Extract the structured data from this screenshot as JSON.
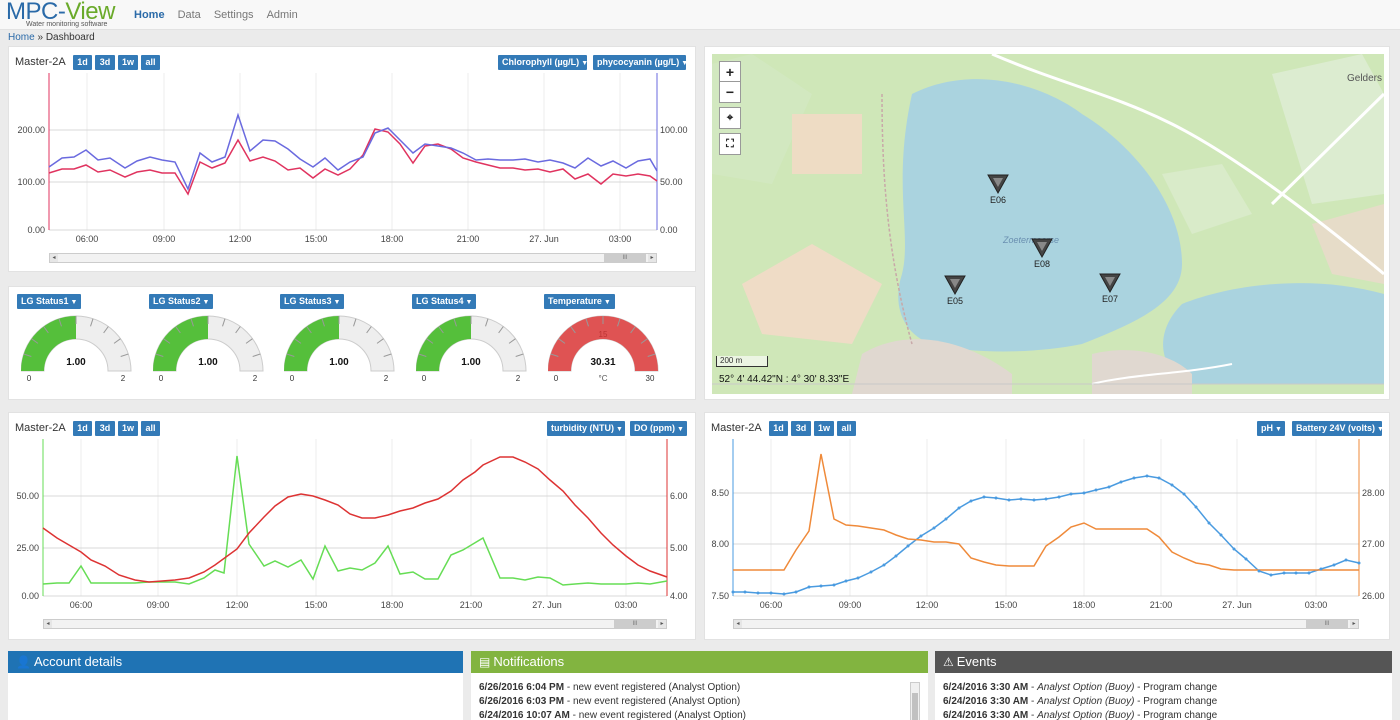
{
  "app": {
    "logo_main_a": "MPC-",
    "logo_main_b": "View",
    "logo_sub": "Water monitoring software"
  },
  "nav": [
    "Home",
    "Data",
    "Settings",
    "Admin"
  ],
  "breadcrumb": {
    "home": "Home",
    "sep": "»",
    "current": "Dashboard"
  },
  "range_buttons": [
    "1d",
    "3d",
    "1w",
    "all"
  ],
  "time_ticks": [
    "06:00",
    "09:00",
    "12:00",
    "15:00",
    "18:00",
    "21:00",
    "27. Jun",
    "03:00"
  ],
  "chart1": {
    "title": "Master-2A",
    "dropdown_left": "Chlorophyll (µg/L)",
    "dropdown_right": "phycocyanin (µg/L)",
    "left_ticks": [
      "200.00",
      "100.00",
      "0.00"
    ],
    "right_ticks": [
      "100.00",
      "50.00",
      "0.00"
    ],
    "colors": {
      "series1": "#e0335f",
      "series2": "#6a6adf"
    }
  },
  "gauges": [
    {
      "label": "LG Status1",
      "value": "1.00",
      "min": "0",
      "max": "2",
      "fraction": 0.5,
      "color": "#55bf3b"
    },
    {
      "label": "LG Status2",
      "value": "1.00",
      "min": "0",
      "max": "2",
      "fraction": 0.5,
      "color": "#55bf3b"
    },
    {
      "label": "LG Status3",
      "value": "1.00",
      "min": "0",
      "max": "2",
      "fraction": 0.5,
      "color": "#55bf3b"
    },
    {
      "label": "LG Status4",
      "value": "1.00",
      "min": "0",
      "max": "2",
      "fraction": 0.5,
      "color": "#55bf3b"
    },
    {
      "label": "Temperature",
      "value": "30.31",
      "min": "0",
      "max": "30",
      "mid": "15",
      "unit": "°C",
      "fraction": 1.0,
      "color": "#df5353"
    }
  ],
  "map": {
    "markers": [
      "E06",
      "E08",
      "E05",
      "E07"
    ],
    "scale": "200 m",
    "coords": "52° 4' 44.42\"N : 4° 30' 8.33\"E",
    "place_label": "Gelders",
    "lake_label": "Zoetermeerse"
  },
  "chart2": {
    "title": "Master-2A",
    "dropdown_left": "turbidity (NTU)",
    "dropdown_right": "DO (ppm)",
    "left_ticks": [
      "50.00",
      "25.00",
      "0.00"
    ],
    "right_ticks": [
      "6.00",
      "5.00",
      "4.00"
    ],
    "colors": {
      "series1": "#66dd55",
      "series2": "#dd3333"
    }
  },
  "chart3": {
    "title": "Master-2A",
    "dropdown_left": "pH",
    "dropdown_right": "Battery 24V (volts)",
    "left_ticks": [
      "8.50",
      "8.00",
      "7.50"
    ],
    "right_ticks": [
      "28.00",
      "27.00",
      "26.00"
    ],
    "colors": {
      "series1": "#4a9be0",
      "series2": "#ef8a3a"
    }
  },
  "account": {
    "title": "Account details",
    "color": "#1f73b4"
  },
  "notifications": {
    "title": "Notifications",
    "color": "#82b440",
    "items": [
      {
        "time": "6/26/2016 6:04 PM",
        "text": " - new event registered (Analyst Option)"
      },
      {
        "time": "6/26/2016 6:03 PM",
        "text": " - new event registered (Analyst Option)"
      },
      {
        "time": "6/24/2016 10:07 AM",
        "text": " - new event registered (Analyst Option)"
      }
    ]
  },
  "events": {
    "title": "Events",
    "color": "#555555",
    "items": [
      {
        "time": "6/24/2016 3:30 AM",
        "source": "Analyst Option (Buoy)",
        "text": " - Program change"
      },
      {
        "time": "6/24/2016 3:30 AM",
        "source": "Analyst Option (Buoy)",
        "text": " - Program change"
      },
      {
        "time": "6/24/2016 3:30 AM",
        "source": "Analyst Option (Buoy)",
        "text": " - Program change"
      }
    ]
  }
}
